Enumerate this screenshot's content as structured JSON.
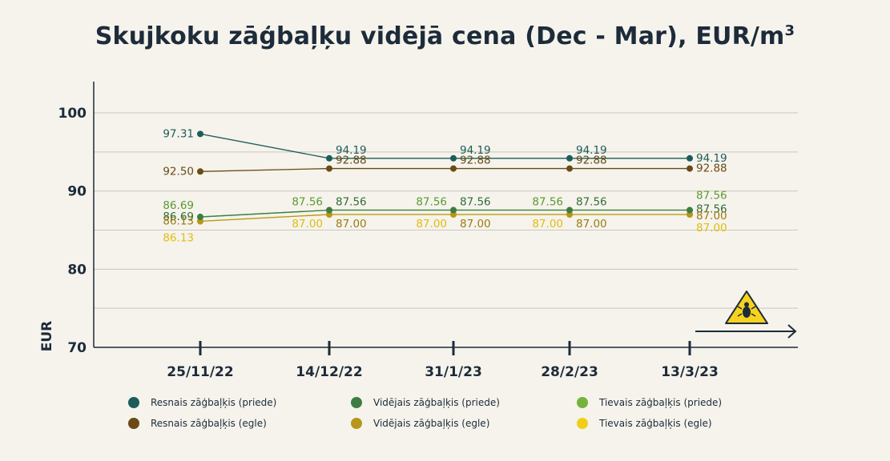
{
  "chart_data": {
    "type": "line",
    "title": "Skujkoku zāģbaļķu vidējā cena (Dec - Mar), EUR/m",
    "title_sup": "3",
    "ylabel": "EUR",
    "ylim": [
      70,
      104
    ],
    "yticks": [
      70,
      80,
      90,
      100
    ],
    "categories": [
      "25/11/22",
      "14/12/22",
      "31/1/23",
      "28/2/23",
      "13/3/23"
    ],
    "grid": true,
    "legend_position": "bottom",
    "series": [
      {
        "name": "Resnais zāģbaļķis (priede)",
        "color": "#1d5c5a",
        "values": [
          97.31,
          94.19,
          94.19,
          94.19,
          94.19
        ]
      },
      {
        "name": "Resnais zāģbaļķis (egle)",
        "color": "#6b4a16",
        "values": [
          92.5,
          92.88,
          92.88,
          92.88,
          92.88
        ]
      },
      {
        "name": "Vidējais zāģbaļķis (priede)",
        "color": "#3d7d44",
        "values": [
          86.69,
          87.56,
          87.56,
          87.56,
          87.56
        ]
      },
      {
        "name": "Vidējais zāģbaļķis (egle)",
        "color": "#b8961a",
        "values": [
          86.13,
          87.0,
          87.0,
          87.0,
          87.0
        ]
      },
      {
        "name": "Tievais zāģbaļķis (priede)",
        "color": "#74b43c",
        "values": [
          86.69,
          87.56,
          87.56,
          87.56,
          87.56
        ]
      },
      {
        "name": "Tievais zāģbaļķis (egle)",
        "color": "#f0cf1a",
        "values": [
          86.13,
          87.0,
          87.0,
          87.0,
          87.0
        ]
      }
    ],
    "data_labels": [
      {
        "series": 0,
        "labels": [
          "97.31",
          "94.19",
          "94.19",
          "94.19",
          "94.19"
        ]
      },
      {
        "series": 1,
        "labels": [
          "92.50",
          "92.88",
          "92.88",
          "92.88",
          "92.88"
        ]
      },
      {
        "series": 2,
        "labels": [
          "86.69",
          "87.56",
          "87.56",
          "87.56",
          "87.56"
        ]
      },
      {
        "series": 3,
        "labels": [
          "86.13",
          "87.00",
          "87.00",
          "87.00",
          "87.00"
        ]
      },
      {
        "series": 4,
        "labels": [
          "86.69",
          "87.56",
          "87.56",
          "87.56",
          "87.56"
        ]
      },
      {
        "series": 5,
        "labels": [
          "86.13",
          "87.00",
          "87.00",
          "87.00",
          "87.00"
        ]
      }
    ]
  },
  "icons": {
    "warning": "beetle-warning-icon",
    "arrow": "arrow-right-icon"
  }
}
